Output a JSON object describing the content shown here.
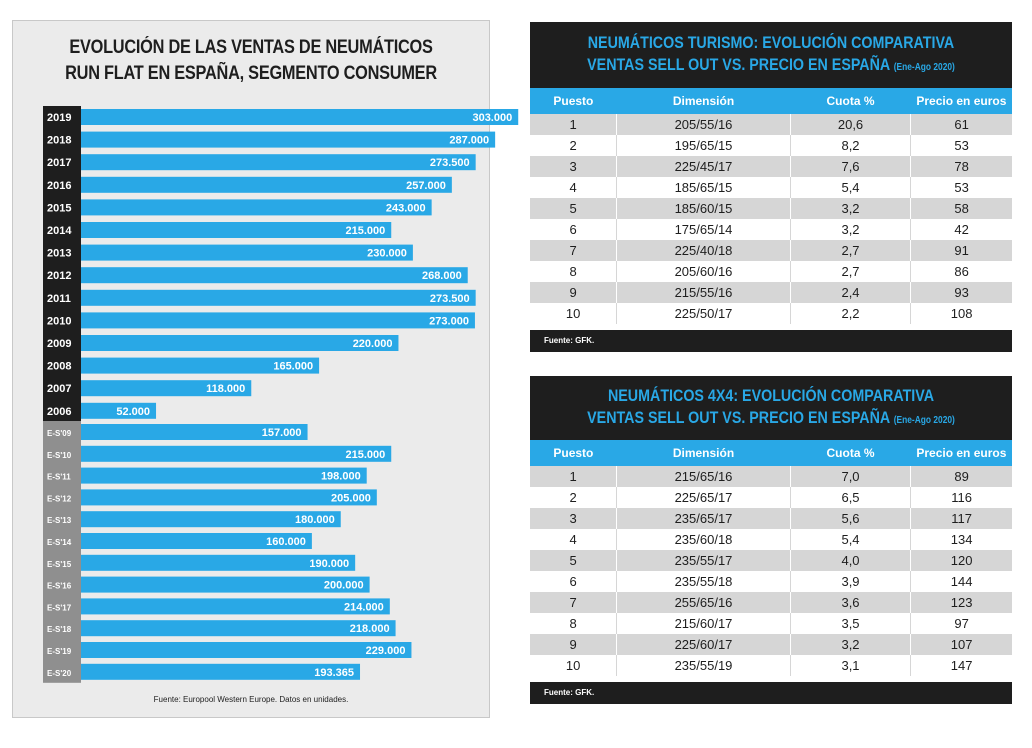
{
  "chart_data": {
    "type": "bar",
    "orientation": "horizontal",
    "title_line1": "EVOLUCIÓN DE LAS VENTAS DE NEUMÁTICOS",
    "title_line2": "RUN FLAT EN ESPAÑA, SEGMENTO CONSUMER",
    "source": "Fuente: Europool Western Europe. Datos en unidades.",
    "categories": [
      "2019",
      "2018",
      "2017",
      "2016",
      "2015",
      "2014",
      "2013",
      "2012",
      "2011",
      "2010",
      "2009",
      "2008",
      "2007",
      "2006",
      "E-S'09",
      "E-S'10",
      "E-S'11",
      "E-S'12",
      "E-S'13",
      "E-S'14",
      "E-S'15",
      "E-S'16",
      "E-S'17",
      "E-S'18",
      "E-S'19",
      "E-S'20"
    ],
    "values": [
      303000,
      287000,
      273500,
      257000,
      243000,
      215000,
      230000,
      268000,
      273500,
      273000,
      220000,
      165000,
      118000,
      52000,
      157000,
      215000,
      198000,
      205000,
      180000,
      160000,
      190000,
      200000,
      214000,
      218000,
      229000,
      193365
    ],
    "value_labels": [
      "303.000",
      "287.000",
      "273.500",
      "257.000",
      "243.000",
      "215.000",
      "230.000",
      "268.000",
      "273.500",
      "273.000",
      "220.000",
      "165.000",
      "118.000",
      "52.000",
      "157.000",
      "215.000",
      "198.000",
      "205.000",
      "180.000",
      "160.000",
      "190.000",
      "200.000",
      "214.000",
      "218.000",
      "229.000",
      "193.365"
    ],
    "colors": {
      "bar": "#29a8e6",
      "year_group": "#1e1e1e",
      "es_group": "#8f8f8f"
    }
  },
  "table1": {
    "title_line1": "NEUMÁTICOS TURISMO: EVOLUCIÓN COMPARATIVA",
    "title_line2": "VENTAS SELL OUT VS. PRECIO EN ESPAÑA",
    "title_note": "(Ene-Ago 2020)",
    "headers": [
      "Puesto",
      "Dimensión",
      "Cuota %",
      "Precio en euros"
    ],
    "rows": [
      [
        "1",
        "205/55/16",
        "20,6",
        "61"
      ],
      [
        "2",
        "195/65/15",
        "8,2",
        "53"
      ],
      [
        "3",
        "225/45/17",
        "7,6",
        "78"
      ],
      [
        "4",
        "185/65/15",
        "5,4",
        "53"
      ],
      [
        "5",
        "185/60/15",
        "3,2",
        "58"
      ],
      [
        "6",
        "175/65/14",
        "3,2",
        "42"
      ],
      [
        "7",
        "225/40/18",
        "2,7",
        "91"
      ],
      [
        "8",
        "205/60/16",
        "2,7",
        "86"
      ],
      [
        "9",
        "215/55/16",
        "2,4",
        "93"
      ],
      [
        "10",
        "225/50/17",
        "2,2",
        "108"
      ]
    ],
    "source": "Fuente: GFK."
  },
  "table2": {
    "title_line1": "NEUMÁTICOS 4X4: EVOLUCIÓN COMPARATIVA",
    "title_line2": "VENTAS SELL OUT VS. PRECIO EN ESPAÑA",
    "title_note": "(Ene-Ago 2020)",
    "headers": [
      "Puesto",
      "Dimensión",
      "Cuota %",
      "Precio en euros"
    ],
    "rows": [
      [
        "1",
        "215/65/16",
        "7,0",
        "89"
      ],
      [
        "2",
        "225/65/17",
        "6,5",
        "116"
      ],
      [
        "3",
        "235/65/17",
        "5,6",
        "117"
      ],
      [
        "4",
        "235/60/18",
        "5,4",
        "134"
      ],
      [
        "5",
        "235/55/17",
        "4,0",
        "120"
      ],
      [
        "6",
        "235/55/18",
        "3,9",
        "144"
      ],
      [
        "7",
        "255/65/16",
        "3,6",
        "123"
      ],
      [
        "8",
        "215/60/17",
        "3,5",
        "97"
      ],
      [
        "9",
        "225/60/17",
        "3,2",
        "107"
      ],
      [
        "10",
        "235/55/19",
        "3,1",
        "147"
      ]
    ],
    "source": "Fuente: GFK."
  }
}
